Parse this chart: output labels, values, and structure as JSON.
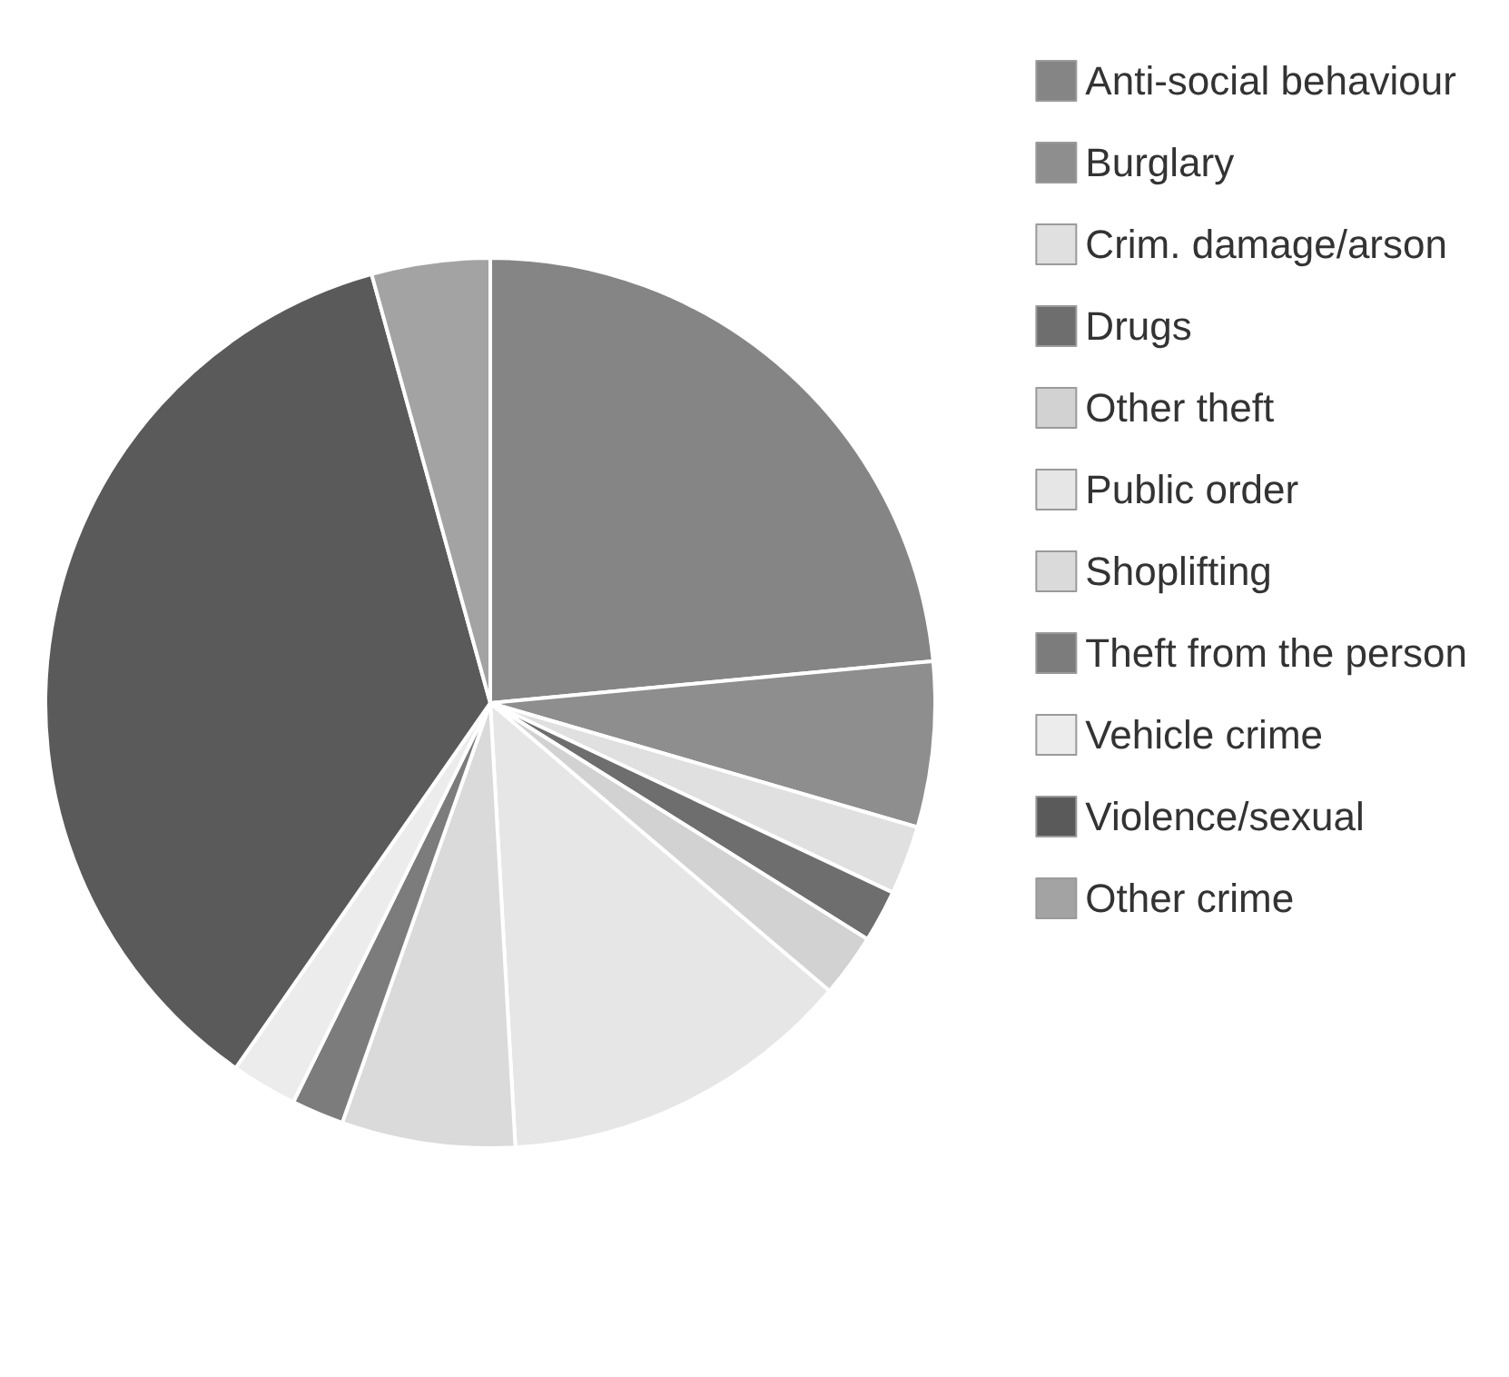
{
  "chart_data": {
    "type": "pie",
    "categories": [
      "Anti-social behaviour",
      "Burglary",
      "Crim. damage/arson",
      "Drugs",
      "Other theft",
      "Public order",
      "Shoplifting",
      "Theft from the person",
      "Vehicle crime",
      "Violence/sexual",
      "Other crime"
    ],
    "values": [
      23.5,
      6.0,
      2.5,
      1.9,
      2.3,
      12.9,
      6.3,
      1.9,
      2.4,
      36.0,
      4.3
    ],
    "colors": [
      "#858585",
      "#8e8e8e",
      "#e0e0e0",
      "#6e6e6e",
      "#d2d2d2",
      "#e6e6e6",
      "#dadada",
      "#7c7c7c",
      "#ececec",
      "#5a5a5a",
      "#a3a3a3"
    ],
    "legend": "top right"
  }
}
